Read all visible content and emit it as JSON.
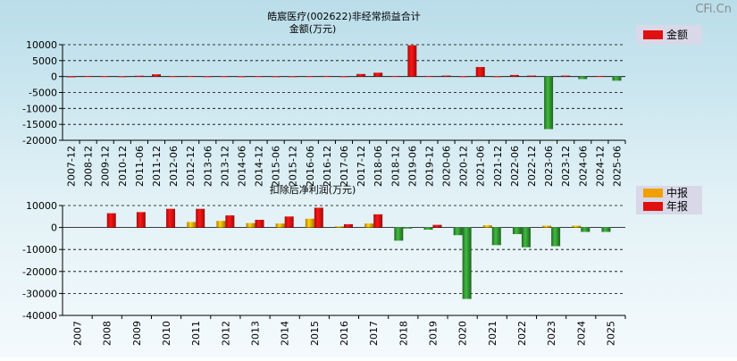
{
  "watermark": "CFi.Cn",
  "colors": {
    "red": "#e01010",
    "green": "#2e8b2e",
    "orange": "#f0a000",
    "grid": "#000000",
    "legend_bg": "#d8d8e8"
  },
  "chart_data": [
    {
      "type": "bar",
      "title_line1": "皓宸医疗(002622)非经常损益合计",
      "title_line2": "金额(万元)",
      "legend": [
        {
          "name": "金额",
          "color": "#e01010"
        }
      ],
      "ylim": [
        -20000,
        10000
      ],
      "yticks": [
        10000,
        5000,
        0,
        -5000,
        -10000,
        -15000,
        -20000
      ],
      "categories": [
        "2007-12",
        "2008-12",
        "2009-12",
        "2010-12",
        "2011-06",
        "2011-12",
        "2012-06",
        "2012-12",
        "2013-06",
        "2013-12",
        "2014-06",
        "2014-12",
        "2015-06",
        "2015-12",
        "2016-06",
        "2016-12",
        "2017-06",
        "2017-12",
        "2018-06",
        "2018-12",
        "2019-06",
        "2019-12",
        "2020-06",
        "2020-12",
        "2021-06",
        "2021-12",
        "2022-06",
        "2022-12",
        "2023-06",
        "2023-12",
        "2024-06",
        "2024-12",
        "2025-06"
      ],
      "values": [
        30,
        200,
        150,
        100,
        250,
        700,
        150,
        200,
        100,
        150,
        100,
        150,
        100,
        100,
        150,
        200,
        100,
        800,
        1200,
        200,
        9800,
        200,
        300,
        100,
        3000,
        100,
        500,
        300,
        -16500,
        300,
        -800,
        200,
        -1300
      ]
    },
    {
      "type": "bar",
      "title": "扣除后净利润(万元)",
      "legend": [
        {
          "name": "中报",
          "color": "#f0a000"
        },
        {
          "name": "年报",
          "color": "#e01010"
        }
      ],
      "ylim": [
        -40000,
        10000
      ],
      "yticks": [
        10000,
        0,
        -10000,
        -20000,
        -30000,
        -40000
      ],
      "categories": [
        "2007",
        "2008",
        "2009",
        "2010",
        "2011",
        "2012",
        "2013",
        "2014",
        "2015",
        "2016",
        "2017",
        "2018",
        "2019",
        "2020",
        "2021",
        "2022",
        "2023",
        "2024",
        "2025"
      ],
      "series": [
        {
          "name": "中报",
          "values": [
            null,
            null,
            null,
            null,
            2500,
            3000,
            2000,
            1800,
            4000,
            500,
            1800,
            -6000,
            -1000,
            -3500,
            1000,
            -3000,
            800,
            800,
            -2000
          ]
        },
        {
          "name": "年报",
          "values": [
            null,
            6500,
            7000,
            8500,
            8500,
            5500,
            3500,
            5000,
            9000,
            1500,
            6000,
            -500,
            1200,
            -32500,
            -8000,
            -9000,
            -8500,
            -2000,
            null
          ]
        }
      ]
    }
  ]
}
